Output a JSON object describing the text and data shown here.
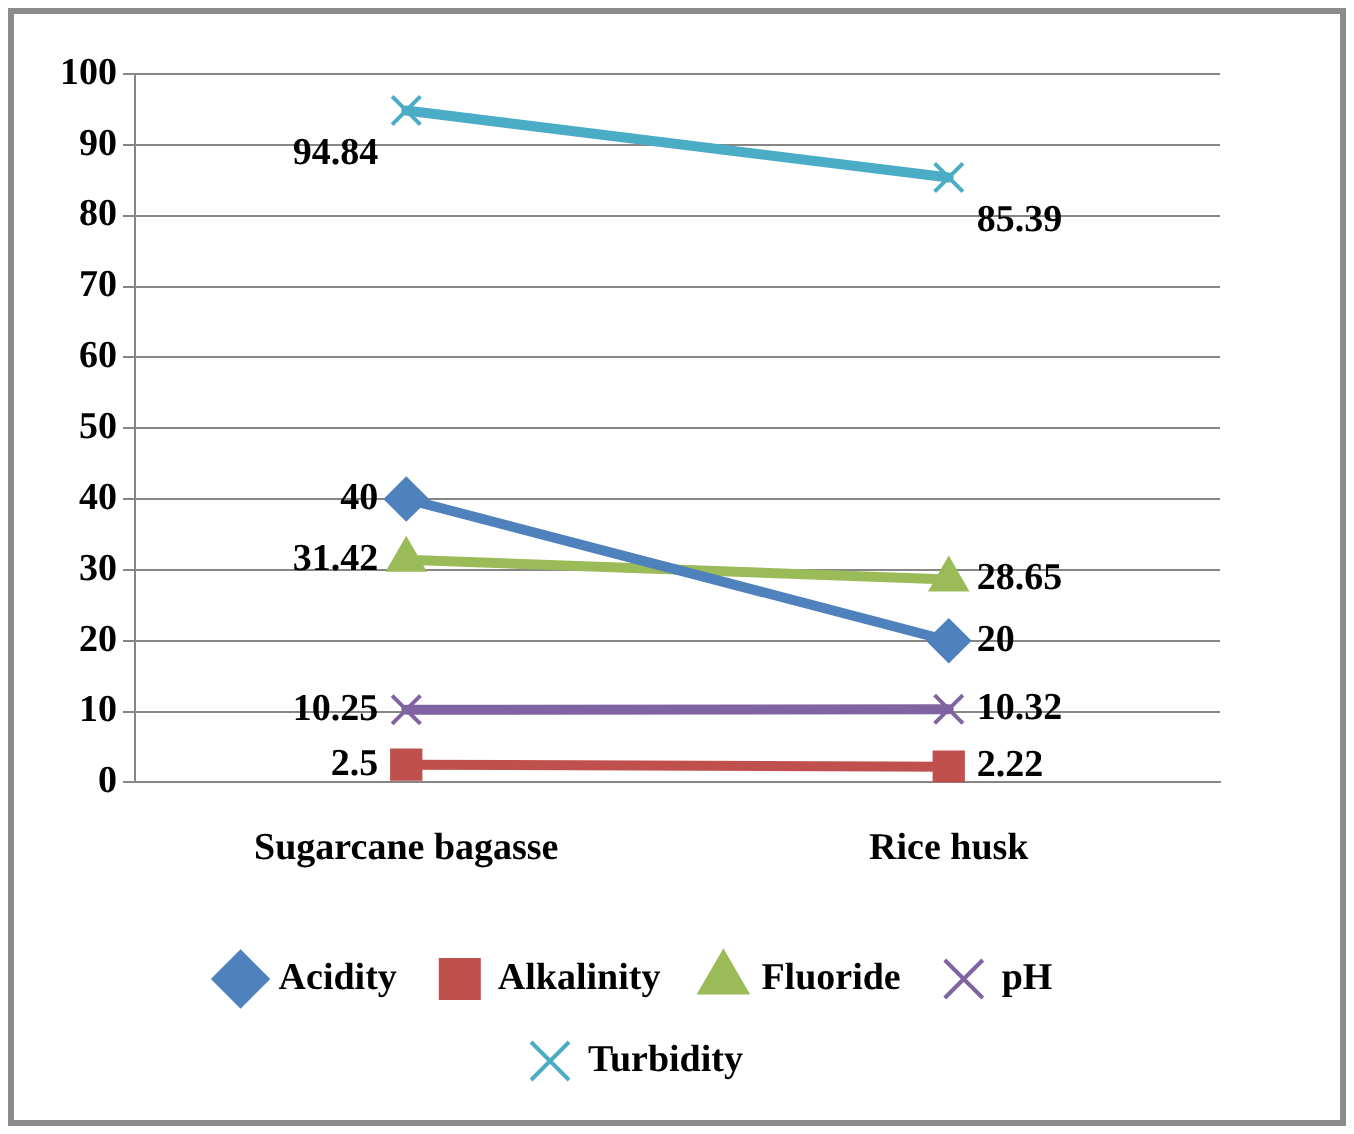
{
  "chart_data": {
    "type": "line",
    "categories": [
      "Sugarcane bagasse",
      "Rice husk"
    ],
    "series": [
      {
        "name": "Acidity",
        "color": "#4f81bd",
        "marker": "diamond",
        "values": [
          40,
          20
        ]
      },
      {
        "name": "Alkalinity",
        "color": "#c0504d",
        "marker": "square",
        "values": [
          2.5,
          2.22
        ]
      },
      {
        "name": "Fluoride",
        "color": "#9bbb59",
        "marker": "triangle",
        "values": [
          31.42,
          28.65
        ]
      },
      {
        "name": "pH",
        "color": "#8064a2",
        "marker": "cross",
        "values": [
          10.25,
          10.32
        ]
      },
      {
        "name": "Turbidity",
        "color": "#4bacc6",
        "marker": "cross",
        "values": [
          94.84,
          85.39
        ]
      }
    ],
    "ylim": [
      0,
      100
    ],
    "yticks": [
      0,
      10,
      20,
      30,
      40,
      50,
      60,
      70,
      80,
      90,
      100
    ],
    "grid": "y",
    "legend": "bottom",
    "data_labels": true,
    "line_style": "solid"
  }
}
